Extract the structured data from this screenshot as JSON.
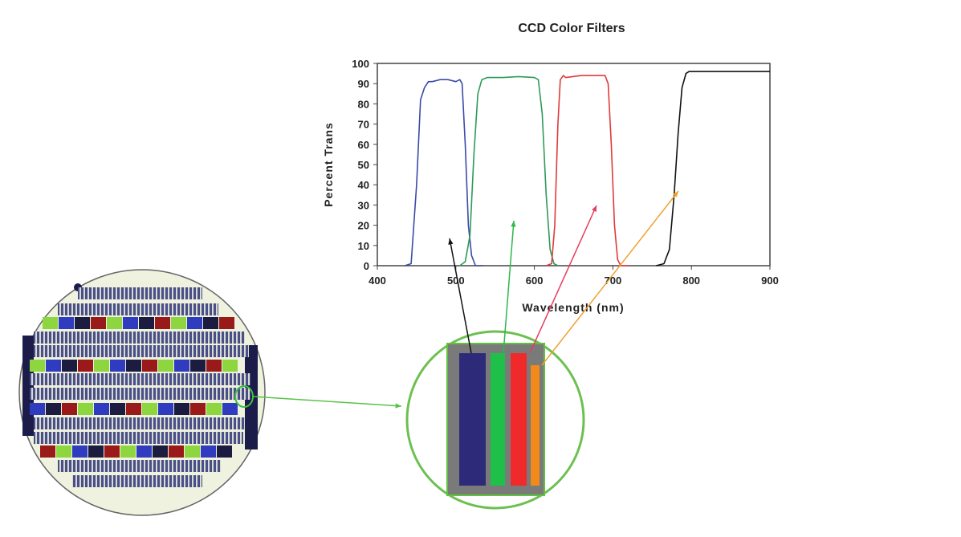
{
  "chart_data": {
    "type": "line",
    "title": "CCD Color Filters",
    "xlabel": "Wavelength (nm)",
    "ylabel": "Percent Trans",
    "xlim": [
      400,
      900
    ],
    "ylim": [
      0,
      100
    ],
    "xticks": [
      400,
      500,
      600,
      700,
      800,
      900
    ],
    "yticks": [
      0,
      10,
      20,
      30,
      40,
      50,
      60,
      70,
      80,
      90,
      100
    ],
    "grid": false,
    "series": [
      {
        "color": "#3a4aa8",
        "x": [
          435,
          443,
          450,
          455,
          460,
          465,
          470,
          480,
          490,
          500,
          505,
          508,
          512,
          516,
          520,
          525,
          535
        ],
        "y": [
          0,
          1,
          40,
          82,
          88,
          91,
          91,
          92,
          92,
          91,
          92,
          90,
          60,
          20,
          5,
          0,
          0
        ]
      },
      {
        "color": "#2e9a5a",
        "x": [
          505,
          512,
          518,
          523,
          528,
          533,
          540,
          560,
          580,
          600,
          605,
          610,
          615,
          620,
          625,
          630
        ],
        "y": [
          0,
          2,
          15,
          55,
          85,
          92,
          93,
          93,
          93.5,
          93,
          92,
          75,
          35,
          8,
          1,
          0
        ]
      },
      {
        "color": "#e03a3a",
        "x": [
          615,
          622,
          626,
          630,
          633,
          637,
          640,
          660,
          690,
          694,
          698,
          702,
          706,
          710,
          720
        ],
        "y": [
          0,
          1,
          20,
          70,
          92,
          94,
          93,
          94,
          94,
          90,
          60,
          20,
          3,
          0,
          0
        ]
      },
      {
        "color": "#111111",
        "x": [
          755,
          765,
          772,
          778,
          783,
          788,
          793,
          797,
          820,
          850,
          880,
          900
        ],
        "y": [
          0,
          1,
          8,
          35,
          65,
          88,
          95,
          96,
          96,
          96,
          96,
          96
        ]
      }
    ]
  },
  "annotations": {
    "arrow_colors": [
      "#111111",
      "#2eb84a",
      "#e83a5a",
      "#f0a030"
    ],
    "connector_color": "#5ac24a",
    "filter_stripe_colors": [
      "#2e2a7a",
      "#1fc04a",
      "#f02a2a",
      "#f08a1a"
    ]
  }
}
